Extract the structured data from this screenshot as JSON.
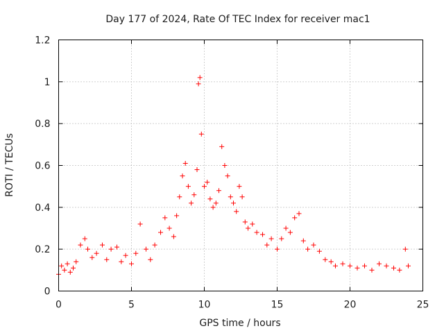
{
  "chart_data": {
    "type": "scatter",
    "title": "Day 177 of 2024, Rate Of TEC Index for receiver mac1",
    "xlabel": "GPS time / hours",
    "ylabel": "ROTI / TECUs",
    "xlim": [
      0,
      25
    ],
    "ylim": [
      0,
      1.2
    ],
    "xticks": [
      0,
      5,
      10,
      15,
      20,
      25
    ],
    "yticks": [
      0,
      0.2,
      0.4,
      0.6,
      0.8,
      1,
      1.2
    ],
    "xtick_labels": [
      "0",
      "5",
      "10",
      "15",
      "20",
      "25"
    ],
    "ytick_labels": [
      "0",
      "0.2",
      "0.4",
      "0.6",
      "0.8",
      "1",
      "1.2"
    ],
    "grid": true,
    "marker": "plus",
    "color": "#ff0000",
    "series": [
      {
        "x": [
          0.0,
          0.2,
          0.4,
          0.6,
          0.8,
          1.0,
          1.2,
          1.5,
          1.8,
          2.0,
          2.3,
          2.6,
          3.0,
          3.3,
          3.6,
          4.0,
          4.3,
          4.6,
          5.0,
          5.3,
          5.6,
          6.0,
          6.3,
          6.6,
          7.0,
          7.3,
          7.6,
          7.9,
          8.1,
          8.3,
          8.5,
          8.7,
          8.9,
          9.1,
          9.3,
          9.5,
          9.6,
          9.7,
          9.8,
          10.0,
          10.2,
          10.4,
          10.6,
          10.8,
          11.0,
          11.2,
          11.4,
          11.6,
          11.8,
          12.0,
          12.2,
          12.4,
          12.6,
          12.8,
          13.0,
          13.3,
          13.6,
          14.0,
          14.3,
          14.6,
          15.0,
          15.3,
          15.6,
          15.9,
          16.2,
          16.5,
          16.8,
          17.1,
          17.5,
          17.9,
          18.3,
          18.7,
          19.0,
          19.5,
          20.0,
          20.5,
          21.0,
          21.5,
          22.0,
          22.5,
          23.0,
          23.4,
          23.8,
          24.0
        ],
        "y": [
          0.08,
          0.12,
          0.1,
          0.13,
          0.09,
          0.11,
          0.14,
          0.22,
          0.25,
          0.2,
          0.16,
          0.18,
          0.22,
          0.15,
          0.2,
          0.21,
          0.14,
          0.17,
          0.13,
          0.18,
          0.32,
          0.2,
          0.15,
          0.22,
          0.28,
          0.35,
          0.3,
          0.26,
          0.36,
          0.45,
          0.55,
          0.61,
          0.5,
          0.42,
          0.46,
          0.58,
          0.99,
          1.02,
          0.75,
          0.5,
          0.52,
          0.44,
          0.4,
          0.42,
          0.48,
          0.69,
          0.6,
          0.55,
          0.45,
          0.42,
          0.38,
          0.5,
          0.45,
          0.33,
          0.3,
          0.32,
          0.28,
          0.27,
          0.22,
          0.25,
          0.2,
          0.25,
          0.3,
          0.28,
          0.35,
          0.37,
          0.24,
          0.2,
          0.22,
          0.19,
          0.15,
          0.14,
          0.12,
          0.13,
          0.12,
          0.11,
          0.12,
          0.1,
          0.13,
          0.12,
          0.11,
          0.1,
          0.2,
          0.12
        ]
      }
    ]
  }
}
